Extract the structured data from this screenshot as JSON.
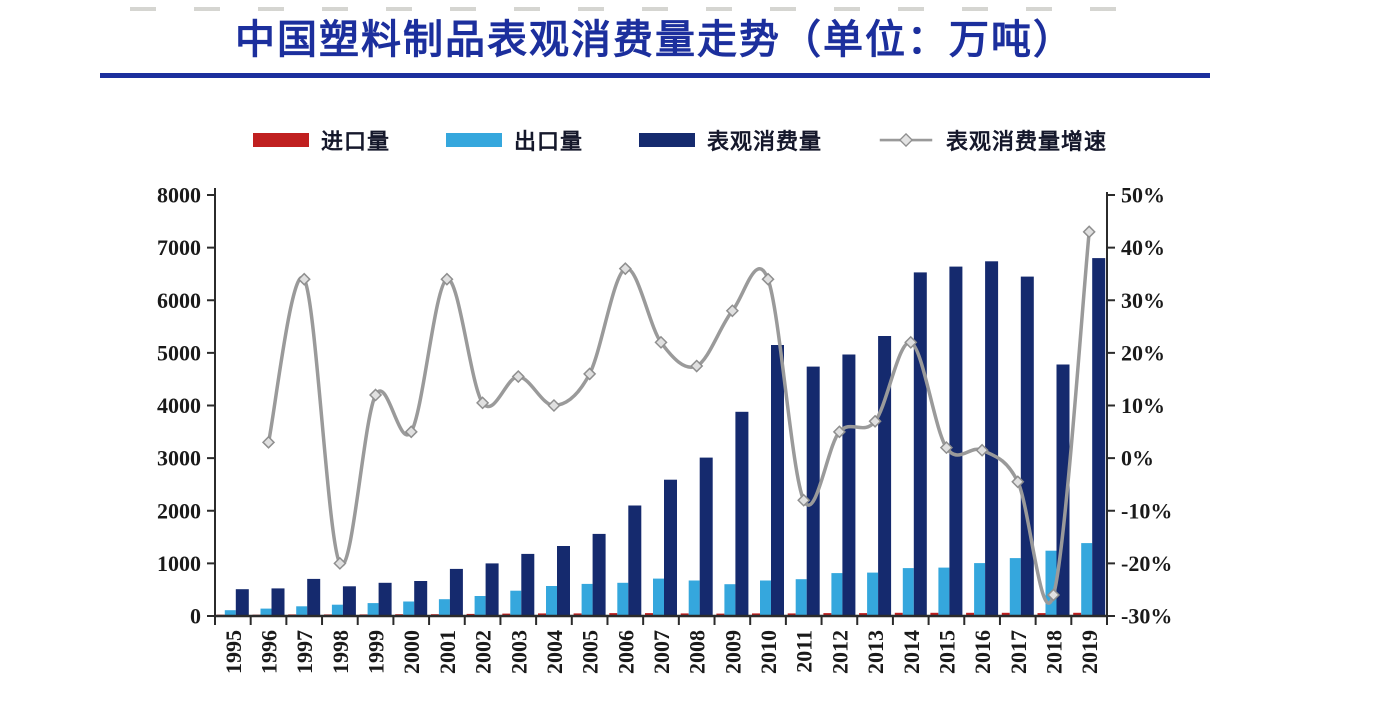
{
  "header": {
    "title": "中国塑料制品表观消费量走势（单位：万吨）",
    "accent_color": "#1c2f9d"
  },
  "legend": {
    "items": [
      {
        "label": "进口量",
        "type": "bar",
        "color": "#c02020"
      },
      {
        "label": "出口量",
        "type": "bar",
        "color": "#35a7dd"
      },
      {
        "label": "表观消费量",
        "type": "bar",
        "color": "#152a6e"
      },
      {
        "label": "表观消费量增速",
        "type": "line",
        "color": "#9a9a9a"
      }
    ]
  },
  "chart_data": {
    "type": "bar",
    "subtype": "clustered-bars-with-line-combo",
    "title": "中国塑料制品表观消费量走势（单位：万吨）",
    "categories": [
      "1995",
      "1996",
      "1997",
      "1998",
      "1999",
      "2000",
      "2001",
      "2002",
      "2003",
      "2004",
      "2005",
      "2006",
      "2007",
      "2008",
      "2009",
      "2010",
      "2011",
      "2012",
      "2013",
      "2014",
      "2015",
      "2016",
      "2017",
      "2018",
      "2019"
    ],
    "bar_series": [
      {
        "name": "进口量",
        "axis": "left",
        "color": "#c02020",
        "values": [
          25,
          25,
          30,
          30,
          30,
          35,
          35,
          40,
          45,
          50,
          50,
          55,
          55,
          50,
          45,
          50,
          50,
          55,
          55,
          60,
          60,
          60,
          60,
          55,
          60
        ]
      },
      {
        "name": "出口量",
        "axis": "left",
        "color": "#35a7dd",
        "values": [
          110,
          140,
          185,
          215,
          245,
          275,
          320,
          380,
          480,
          570,
          610,
          630,
          710,
          675,
          605,
          675,
          700,
          815,
          825,
          910,
          920,
          1005,
          1100,
          1240,
          1385
        ]
      },
      {
        "name": "表观消费量",
        "axis": "left",
        "color": "#152a6e",
        "values": [
          510,
          525,
          705,
          565,
          630,
          665,
          895,
          1000,
          1180,
          1330,
          1560,
          2100,
          2590,
          3010,
          3880,
          5150,
          4740,
          4970,
          5320,
          6530,
          6640,
          6740,
          6450,
          4780,
          6800
        ]
      }
    ],
    "line_series": [
      {
        "name": "表观消费量增速",
        "axis": "right",
        "color": "#9a9a9a",
        "marker": "diamond",
        "unit": "%",
        "values": [
          null,
          3,
          34,
          -20,
          12,
          5,
          34,
          10.5,
          15.5,
          10,
          16,
          36,
          22,
          17.5,
          28,
          34,
          -8,
          5,
          7,
          22,
          2,
          1.5,
          -4.5,
          -26,
          43
        ]
      }
    ],
    "left_axis": {
      "min": 0,
      "max": 8000,
      "step": 1000,
      "tick_labels": [
        "0",
        "1000",
        "2000",
        "3000",
        "4000",
        "5000",
        "6000",
        "7000",
        "8000"
      ]
    },
    "right_axis": {
      "min": -30,
      "max": 50,
      "step": 10,
      "tick_labels": [
        "-30%",
        "-20%",
        "-10%",
        "0%",
        "10%",
        "20%",
        "30%",
        "40%",
        "50%"
      ]
    },
    "grid": false,
    "legend_position": "top"
  }
}
